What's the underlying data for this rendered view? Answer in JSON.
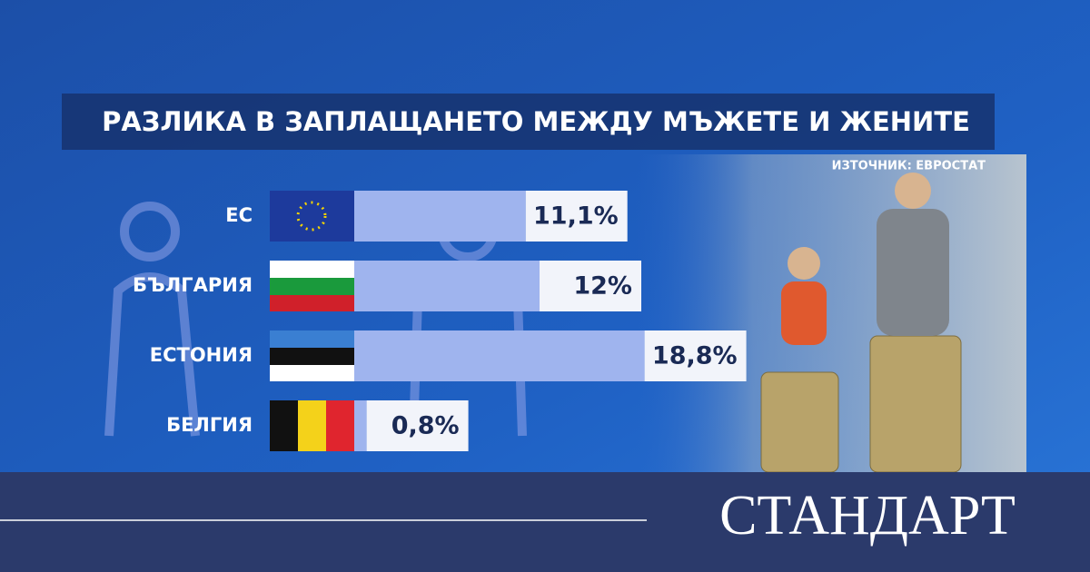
{
  "chart_data": {
    "type": "bar",
    "orientation": "horizontal",
    "title": "РАЗЛИКА В ЗАПЛАЩАНЕТО МЕЖДУ МЪЖЕТЕ И ЖЕНИТЕ",
    "source": "ИЗТОЧНИК: ЕВРОСТАТ",
    "categories": [
      "ЕС",
      "БЪЛГАРИЯ",
      "ЕСТОНИЯ",
      "БЕЛГИЯ"
    ],
    "values": [
      11.1,
      12,
      18.8,
      0.8
    ],
    "value_labels": [
      "11,1%",
      "12%",
      "18,8%",
      "0,8%"
    ],
    "color": "#9fb4ee"
  },
  "brand": "СТАНДАРТ"
}
